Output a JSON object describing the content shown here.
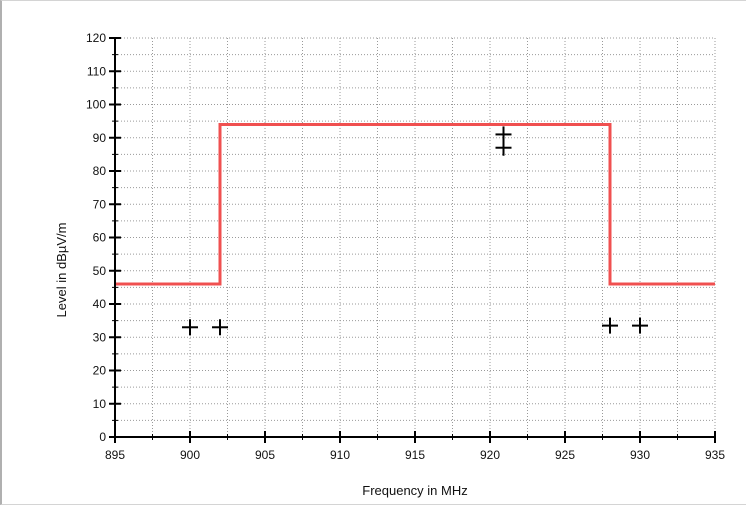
{
  "chart_data": {
    "type": "scatter",
    "title": "",
    "xlabel": "Frequency in MHz",
    "ylabel": "Level in dBµV/m",
    "xlim": [
      895,
      935
    ],
    "ylim": [
      0,
      120
    ],
    "x_ticks": [
      895,
      900,
      905,
      910,
      915,
      920,
      925,
      930,
      935
    ],
    "y_ticks": [
      0,
      10,
      20,
      30,
      40,
      50,
      60,
      70,
      80,
      90,
      100,
      110,
      120
    ],
    "grid": true,
    "legend": "none",
    "series": [
      {
        "type": "line",
        "color": "#f05050",
        "step": true,
        "x": [
          895,
          902,
          902,
          928,
          928,
          935
        ],
        "y": [
          46,
          46,
          94,
          94,
          46,
          46
        ]
      },
      {
        "type": "scatter",
        "marker": "plus",
        "color": "#000000",
        "x": [
          900,
          902,
          920.9,
          920.9,
          928,
          930
        ],
        "y": [
          33,
          33,
          91,
          87,
          33.5,
          33.5
        ]
      }
    ]
  }
}
